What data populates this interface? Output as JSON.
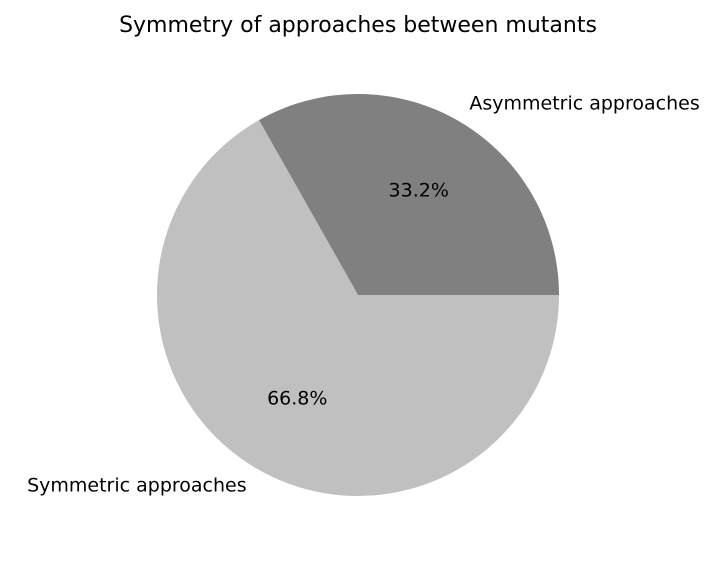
{
  "chart_data": {
    "type": "pie",
    "title": "Symmetry of approaches between mutants",
    "slices": [
      {
        "label": "Asymmetric approaches",
        "percent": 33.2,
        "percent_label": "33.2%",
        "color": "#808080"
      },
      {
        "label": "Symmetric approaches",
        "percent": 66.8,
        "percent_label": "66.8%",
        "color": "#c0c0c0"
      }
    ],
    "start_angle_deg": 0,
    "direction": "counterclockwise"
  }
}
